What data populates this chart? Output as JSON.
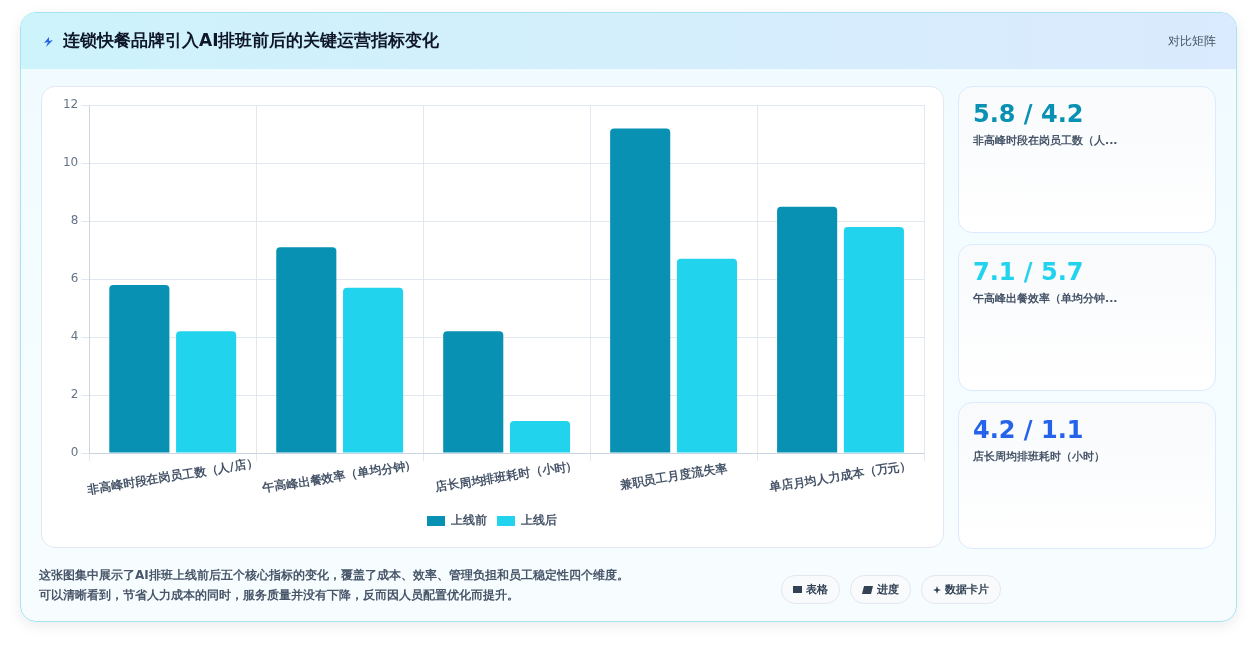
{
  "chart_data": [
    {
      "type": "bar",
      "title": "连锁快餐品牌引入AI排班前后的关键运营指标变化",
      "categories": [
        "非高峰时段在岗员工数（人/店）",
        "午高峰出餐效率（单均分钟）",
        "店长周均排班耗时（小时）",
        "兼职员工月度流失率",
        "单店月均人力成本（万元）"
      ],
      "series": [
        {
          "name": "上线前",
          "color": "#0891b2",
          "values": [
            5.8,
            7.1,
            4.2,
            11.2,
            8.5
          ]
        },
        {
          "name": "上线后",
          "color": "#22d3ee",
          "values": [
            4.2,
            5.7,
            1.1,
            6.7,
            7.8
          ]
        }
      ],
      "ylim": [
        0,
        12
      ],
      "yticks": [
        0,
        2,
        4,
        6,
        8,
        10,
        12
      ],
      "grid": true,
      "legend": "bottom",
      "annotations": [
        "对比矩阵",
        "这张图集中展示了AI排班上线前后五个核心指标的变化，覆盖了成本、效率、管理负担和员工稳定性四个维度。",
        "可以清晰看到，节省人力成本的同时，服务质量并没有下降，反而因人员配置优化而提升。",
        "表格",
        "进度",
        "数据卡片"
      ]
    },
    {
      "type": "other",
      "title": "5.8 / 4.2",
      "subtitle": "非高峰时段在岗员工数（人..."
    },
    {
      "type": "other",
      "title": "7.1 / 5.7",
      "subtitle": "午高峰出餐效率（单均分钟..."
    },
    {
      "type": "other",
      "title": "4.2 / 1.1",
      "subtitle": "店长周均排班耗时（小时）"
    }
  ]
}
